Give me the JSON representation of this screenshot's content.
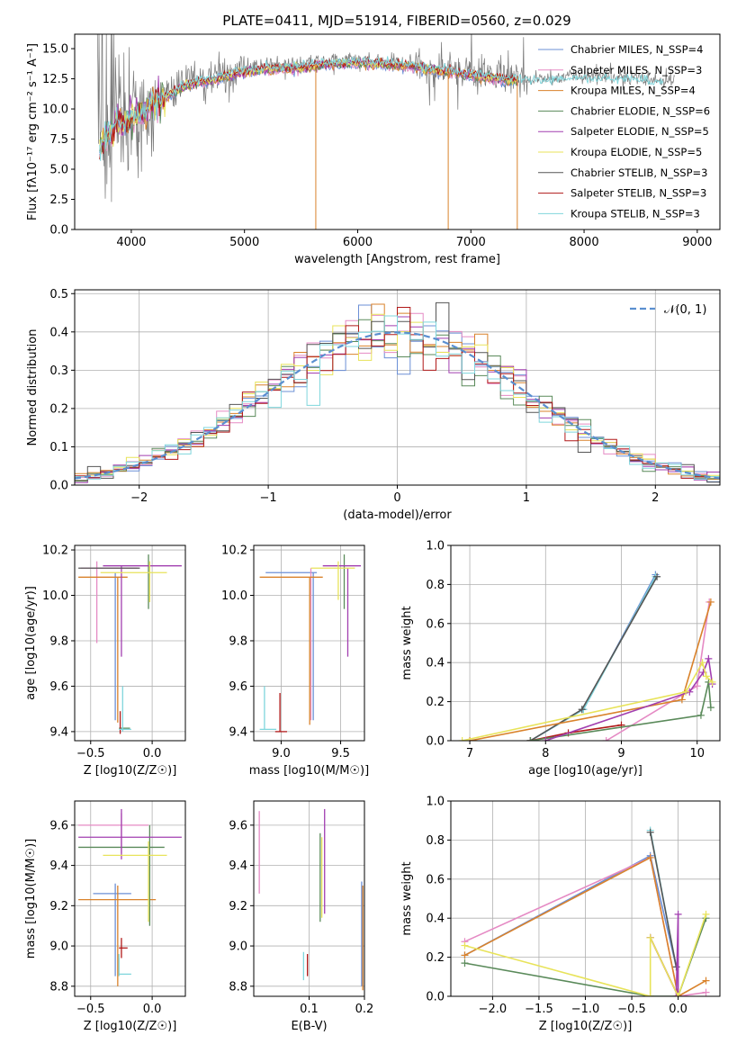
{
  "figure_title": "PLATE=0411, MJD=51914, FIBERID=0560, z=0.029",
  "colors": [
    "#6b8fd6",
    "#e58ac4",
    "#d9822b",
    "#5a8a5a",
    "#a23fb0",
    "#e8e35a",
    "#555555",
    "#b01818",
    "#7fd6dc"
  ],
  "chart_data": [
    {
      "id": "spectrum",
      "type": "line",
      "title": "PLATE=0411, MJD=51914, FIBERID=0560, z=0.029",
      "xlabel": "wavelength [Angstrom, rest frame]",
      "ylabel": "Flux [fλ10⁻¹⁷ erg cm⁻² s⁻¹ A⁻¹]",
      "xlim": [
        3500,
        9200
      ],
      "ylim": [
        0,
        16.2
      ],
      "xticks": [
        4000,
        5000,
        6000,
        7000,
        8000,
        9000
      ],
      "yticks": [
        0.0,
        2.5,
        5.0,
        7.5,
        10.0,
        12.5,
        15.0
      ],
      "grid": false,
      "legend_position": "top-right",
      "data_envelope": {
        "x": [
          3750,
          3850,
          4000,
          4250,
          4500,
          4750,
          5000,
          5250,
          5500,
          5750,
          6000,
          6250,
          6500,
          6750,
          7000,
          7250,
          7400,
          7600,
          7800,
          8000,
          8200,
          8400,
          8600,
          8800
        ],
        "y": [
          7.5,
          9.0,
          9.5,
          11.0,
          12.3,
          12.8,
          13.4,
          13.6,
          13.7,
          14.0,
          14.1,
          14.0,
          13.8,
          13.4,
          13.1,
          12.8,
          12.6,
          12.5,
          12.6,
          12.7,
          12.6,
          12.6,
          12.4,
          12.4
        ]
      },
      "legend": [
        "Chabrier MILES, N_SSP=4",
        "Salpeter MILES, N_SSP=3",
        "Kroupa MILES, N_SSP=4",
        "Chabrier ELODIE, N_SSP=6",
        "Salpeter ELODIE, N_SSP=5",
        "Kroupa ELODIE, N_SSP=5",
        "Chabrier STELIB, N_SSP=3",
        "Salpeter STELIB, N_SSP=3",
        "Kroupa STELIB, N_SSP=3"
      ]
    },
    {
      "id": "residuals",
      "type": "line",
      "xlabel": "(data-model)/error",
      "ylabel": "Normed distribution",
      "xlim": [
        -2.5,
        2.5
      ],
      "ylim": [
        0,
        0.51
      ],
      "xticks": [
        -2,
        -1,
        0,
        1,
        2
      ],
      "yticks": [
        0.0,
        0.1,
        0.2,
        0.3,
        0.4,
        0.5
      ],
      "grid": true,
      "legend_position": "top-right",
      "reference_curve": "N(0,1)",
      "legend": [
        "𝒩(0, 1)"
      ],
      "bin_width": 0.1
    },
    {
      "id": "age-vs-Z",
      "type": "scatter",
      "xlabel": "Z [log10(Z/Z☉)]",
      "ylabel": "age  [log10(age/yr)]",
      "xlim": [
        -0.63,
        0.27
      ],
      "ylim": [
        9.36,
        10.22
      ],
      "xticks": [
        -0.5,
        0.0
      ],
      "yticks": [
        9.4,
        9.6,
        9.8,
        10.0,
        10.2
      ],
      "grid": true,
      "segments": [
        {
          "c": 0,
          "x": [
            -0.3,
            -0.3
          ],
          "y": [
            9.45,
            10.1
          ]
        },
        {
          "c": 1,
          "x": [
            -0.45,
            -0.45
          ],
          "y": [
            9.79,
            10.15
          ]
        },
        {
          "c": 1,
          "x": [
            -0.58,
            -0.12
          ],
          "y": [
            10.12,
            10.12
          ]
        },
        {
          "c": 2,
          "x": [
            -0.28,
            -0.28
          ],
          "y": [
            9.44,
            10.08
          ]
        },
        {
          "c": 2,
          "x": [
            -0.6,
            -0.2
          ],
          "y": [
            10.08,
            10.08
          ]
        },
        {
          "c": 3,
          "x": [
            -0.03,
            -0.03
          ],
          "y": [
            9.94,
            10.18
          ]
        },
        {
          "c": 3,
          "x": [
            -0.27,
            -0.18
          ],
          "y": [
            9.415,
            9.415
          ]
        },
        {
          "c": 4,
          "x": [
            -0.25,
            -0.25
          ],
          "y": [
            9.73,
            10.13
          ]
        },
        {
          "c": 4,
          "x": [
            -0.4,
            0.24
          ],
          "y": [
            10.13,
            10.13
          ]
        },
        {
          "c": 5,
          "x": [
            -0.02,
            -0.02
          ],
          "y": [
            9.97,
            10.15
          ]
        },
        {
          "c": 5,
          "x": [
            -0.42,
            0.12
          ],
          "y": [
            10.1,
            10.1
          ]
        },
        {
          "c": 6,
          "x": [
            -0.6,
            -0.1
          ],
          "y": [
            10.12,
            10.12
          ]
        },
        {
          "c": 7,
          "x": [
            -0.26,
            -0.26
          ],
          "y": [
            9.39,
            9.49
          ]
        },
        {
          "c": 8,
          "x": [
            -0.24,
            -0.24
          ],
          "y": [
            9.4,
            9.6
          ]
        },
        {
          "c": 8,
          "x": [
            -0.27,
            -0.17
          ],
          "y": [
            9.41,
            9.41
          ]
        }
      ]
    },
    {
      "id": "age-vs-mass",
      "type": "scatter",
      "xlabel": "mass [log10(M/M☉)]",
      "ylabel": "",
      "xlim": [
        8.77,
        9.7
      ],
      "ylim": [
        9.36,
        10.22
      ],
      "xticks": [
        9.0,
        9.5
      ],
      "yticks": [
        9.4,
        9.6,
        9.8,
        10.0,
        10.2
      ],
      "grid": true,
      "segments": [
        {
          "c": 0,
          "x": [
            9.27,
            9.27
          ],
          "y": [
            9.45,
            10.1
          ]
        },
        {
          "c": 0,
          "x": [
            8.87,
            9.3
          ],
          "y": [
            10.1,
            10.1
          ]
        },
        {
          "c": 1,
          "x": [
            9.25,
            9.25
          ],
          "y": [
            9.45,
            10.12
          ]
        },
        {
          "c": 2,
          "x": [
            9.24,
            9.24
          ],
          "y": [
            9.43,
            10.08
          ]
        },
        {
          "c": 2,
          "x": [
            8.82,
            9.35
          ],
          "y": [
            10.08,
            10.08
          ]
        },
        {
          "c": 3,
          "x": [
            9.53,
            9.53
          ],
          "y": [
            9.94,
            10.18
          ]
        },
        {
          "c": 4,
          "x": [
            9.56,
            9.56
          ],
          "y": [
            9.73,
            10.12
          ]
        },
        {
          "c": 4,
          "x": [
            9.35,
            9.67
          ],
          "y": [
            10.13,
            10.13
          ]
        },
        {
          "c": 5,
          "x": [
            9.48,
            9.48
          ],
          "y": [
            9.98,
            10.15
          ]
        },
        {
          "c": 5,
          "x": [
            9.25,
            9.62
          ],
          "y": [
            10.12,
            10.12
          ]
        },
        {
          "c": 7,
          "x": [
            8.99,
            8.99
          ],
          "y": [
            9.4,
            9.57
          ]
        },
        {
          "c": 7,
          "x": [
            8.95,
            9.05
          ],
          "y": [
            9.4,
            9.4
          ]
        },
        {
          "c": 8,
          "x": [
            8.86,
            8.86
          ],
          "y": [
            9.41,
            9.6
          ]
        },
        {
          "c": 8,
          "x": [
            8.82,
            8.96
          ],
          "y": [
            9.41,
            9.41
          ]
        }
      ]
    },
    {
      "id": "weight-vs-age",
      "type": "line",
      "xlabel": "age  [log10(age/yr)]",
      "ylabel": "mass weight",
      "xlim": [
        6.75,
        10.3
      ],
      "ylim": [
        0,
        1.0
      ],
      "xticks": [
        7,
        8,
        9,
        10
      ],
      "yticks": [
        0.0,
        0.2,
        0.4,
        0.6,
        0.8,
        1.0
      ],
      "grid": true,
      "series": [
        {
          "c": 0,
          "x": [
            7.8,
            8.5,
            9.45
          ],
          "y": [
            0.0,
            0.16,
            0.85
          ]
        },
        {
          "c": 8,
          "x": [
            7.8,
            8.5,
            9.45
          ],
          "y": [
            0.0,
            0.16,
            0.84
          ]
        },
        {
          "c": 6,
          "x": [
            7.8,
            8.48,
            9.47
          ],
          "y": [
            0.0,
            0.16,
            0.84
          ]
        },
        {
          "c": 1,
          "x": [
            8.8,
            10.0,
            10.16
          ],
          "y": [
            0.0,
            0.28,
            0.71
          ]
        },
        {
          "c": 2,
          "x": [
            7.0,
            9.8,
            10.18
          ],
          "y": [
            0.0,
            0.21,
            0.71
          ]
        },
        {
          "c": 7,
          "x": [
            7.8,
            8.3,
            9.0
          ],
          "y": [
            0.0,
            0.04,
            0.08
          ]
        },
        {
          "c": 3,
          "x": [
            7.8,
            10.05,
            10.15,
            10.18
          ],
          "y": [
            0.0,
            0.13,
            0.3,
            0.17
          ]
        },
        {
          "c": 4,
          "x": [
            8.0,
            9.9,
            10.08,
            10.15,
            10.2
          ],
          "y": [
            0.0,
            0.25,
            0.35,
            0.42,
            0.29
          ]
        },
        {
          "c": 5,
          "x": [
            6.9,
            9.85,
            10.07,
            10.12,
            10.2
          ],
          "y": [
            0.0,
            0.25,
            0.4,
            0.33,
            0.3
          ]
        }
      ]
    },
    {
      "id": "mass-vs-Z",
      "type": "scatter",
      "xlabel": "Z [log10(Z/Z☉)]",
      "ylabel": "mass [log10(M/M☉)]",
      "xlim": [
        -0.63,
        0.27
      ],
      "ylim": [
        8.75,
        9.72
      ],
      "xticks": [
        -0.5,
        0.0
      ],
      "yticks": [
        8.8,
        9.0,
        9.2,
        9.4,
        9.6
      ],
      "grid": true,
      "segments": [
        {
          "c": 0,
          "x": [
            -0.3,
            -0.3
          ],
          "y": [
            8.85,
            9.31
          ]
        },
        {
          "c": 0,
          "x": [
            -0.48,
            -0.17
          ],
          "y": [
            9.26,
            9.26
          ]
        },
        {
          "c": 1,
          "x": [
            -0.25,
            -0.25
          ],
          "y": [
            9.46,
            9.66
          ]
        },
        {
          "c": 1,
          "x": [
            -0.6,
            -0.03
          ],
          "y": [
            9.6,
            9.6
          ]
        },
        {
          "c": 2,
          "x": [
            -0.28,
            -0.28
          ],
          "y": [
            8.8,
            9.3
          ]
        },
        {
          "c": 2,
          "x": [
            -0.6,
            0.03
          ],
          "y": [
            9.23,
            9.23
          ]
        },
        {
          "c": 3,
          "x": [
            -0.02,
            -0.02
          ],
          "y": [
            9.1,
            9.6
          ]
        },
        {
          "c": 3,
          "x": [
            -0.6,
            0.1
          ],
          "y": [
            9.49,
            9.49
          ]
        },
        {
          "c": 4,
          "x": [
            -0.25,
            -0.25
          ],
          "y": [
            9.43,
            9.68
          ]
        },
        {
          "c": 4,
          "x": [
            -0.6,
            0.24
          ],
          "y": [
            9.54,
            9.54
          ]
        },
        {
          "c": 5,
          "x": [
            -0.03,
            -0.03
          ],
          "y": [
            9.12,
            9.52
          ]
        },
        {
          "c": 5,
          "x": [
            -0.4,
            0.12
          ],
          "y": [
            9.45,
            9.45
          ]
        },
        {
          "c": 7,
          "x": [
            -0.25,
            -0.25
          ],
          "y": [
            8.94,
            9.04
          ]
        },
        {
          "c": 7,
          "x": [
            -0.27,
            -0.2
          ],
          "y": [
            8.99,
            8.99
          ]
        },
        {
          "c": 8,
          "x": [
            -0.27,
            -0.27
          ],
          "y": [
            8.85,
            8.96
          ]
        },
        {
          "c": 8,
          "x": [
            -0.27,
            -0.17
          ],
          "y": [
            8.86,
            8.86
          ]
        }
      ]
    },
    {
      "id": "mass-vs-EBV",
      "type": "scatter",
      "xlabel": "E(B-V)",
      "ylabel": "",
      "xlim": [
        0.0,
        0.2
      ],
      "ylim": [
        8.75,
        9.72
      ],
      "xticks": [
        0.1,
        0.2
      ],
      "yticks": [
        8.8,
        9.0,
        9.2,
        9.4,
        9.6
      ],
      "grid": true,
      "segments": [
        {
          "c": 1,
          "x": [
            0.01,
            0.01
          ],
          "y": [
            9.26,
            9.67
          ]
        },
        {
          "c": 8,
          "x": [
            0.09,
            0.09
          ],
          "y": [
            8.83,
            8.97
          ]
        },
        {
          "c": 7,
          "x": [
            0.097,
            0.097
          ],
          "y": [
            8.85,
            8.96
          ]
        },
        {
          "c": 3,
          "x": [
            0.12,
            0.12
          ],
          "y": [
            9.12,
            9.56
          ]
        },
        {
          "c": 5,
          "x": [
            0.123,
            0.123
          ],
          "y": [
            9.14,
            9.54
          ]
        },
        {
          "c": 4,
          "x": [
            0.128,
            0.128
          ],
          "y": [
            9.16,
            9.68
          ]
        },
        {
          "c": 0,
          "x": [
            0.195,
            0.195
          ],
          "y": [
            8.8,
            9.32
          ]
        },
        {
          "c": 2,
          "x": [
            0.197,
            0.197
          ],
          "y": [
            8.78,
            9.3
          ]
        }
      ]
    },
    {
      "id": "weight-vs-Z",
      "type": "line",
      "xlabel": "Z [log10(Z/Z☉)]",
      "ylabel": "mass weight",
      "xlim": [
        -2.45,
        0.45
      ],
      "ylim": [
        0,
        1.0
      ],
      "xticks": [
        -2.0,
        -1.5,
        -1.0,
        -0.5,
        0.0
      ],
      "yticks": [
        0.0,
        0.2,
        0.4,
        0.6,
        0.8,
        1.0
      ],
      "grid": true,
      "series": [
        {
          "c": 0,
          "x": [
            -2.3,
            -0.3,
            -0.02
          ],
          "y": [
            0.21,
            0.72,
            0.15
          ]
        },
        {
          "c": 8,
          "x": [
            -0.3,
            -0.02
          ],
          "y": [
            0.85,
            0.15
          ]
        },
        {
          "c": 6,
          "x": [
            -0.3,
            -0.02
          ],
          "y": [
            0.84,
            0.15
          ]
        },
        {
          "c": 1,
          "x": [
            -2.3,
            -0.3,
            0.0,
            0.3
          ],
          "y": [
            0.28,
            0.71,
            0.0,
            0.02
          ]
        },
        {
          "c": 2,
          "x": [
            -2.3,
            -0.3,
            0.0,
            0.3
          ],
          "y": [
            0.21,
            0.71,
            0.0,
            0.08
          ]
        },
        {
          "c": 7,
          "x": [
            -0.3,
            0.0
          ],
          "y": [
            0.3,
            0.0
          ]
        },
        {
          "c": 3,
          "x": [
            -2.3,
            -0.3,
            0.0,
            0.3
          ],
          "y": [
            0.17,
            0.0,
            0.0,
            0.4
          ]
        },
        {
          "c": 4,
          "x": [
            -0.3,
            0.0,
            0.0,
            -0.02
          ],
          "y": [
            0.3,
            0.0,
            0.42,
            0.0
          ]
        },
        {
          "c": 5,
          "x": [
            -2.3,
            -0.3,
            -0.3,
            0.0,
            0.3
          ],
          "y": [
            0.26,
            0.0,
            0.3,
            0.0,
            0.42
          ]
        }
      ]
    }
  ]
}
